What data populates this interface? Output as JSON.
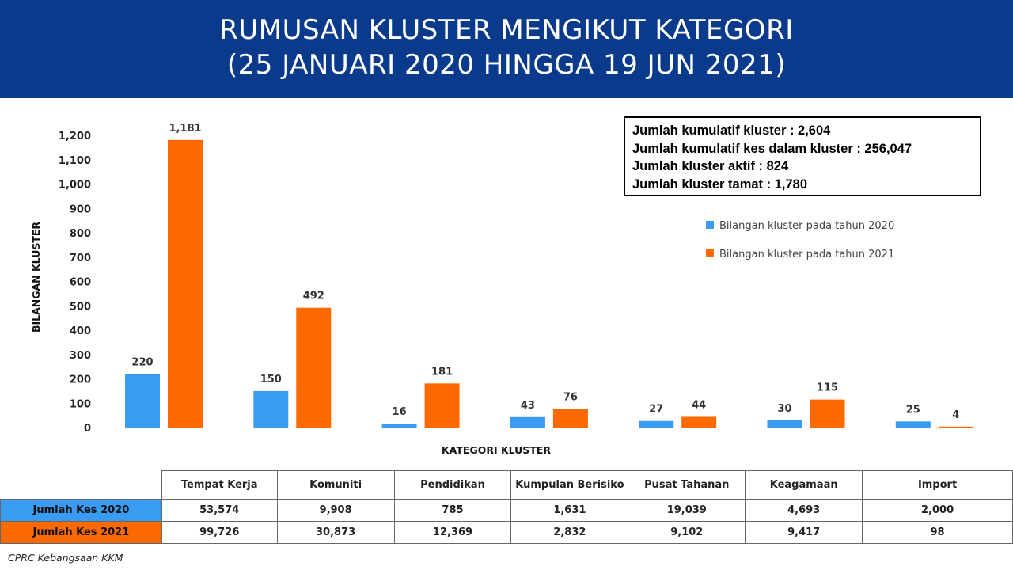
{
  "header": {
    "line1": "RUMUSAN KLUSTER MENGIKUT KATEGORI",
    "line2": "(25 JANUARI 2020 HINGGA 19 JUN 2021)"
  },
  "stats": [
    "Jumlah kumulatif kluster : 2,604",
    "Jumlah kumulatif kes dalam kluster : 256,047",
    "Jumlah kluster aktif : 824",
    "Jumlah kluster tamat : 1,780"
  ],
  "chart_data": {
    "type": "bar",
    "title": "",
    "xlabel": "KATEGORI KLUSTER",
    "ylabel": "BILANGAN KLUSTER",
    "ylim": [
      0,
      1200
    ],
    "yticks": [
      0,
      100,
      200,
      300,
      400,
      500,
      600,
      700,
      800,
      900,
      1000,
      1100,
      1200
    ],
    "ytick_labels": [
      "0",
      "100",
      "200",
      "300",
      "400",
      "500",
      "600",
      "700",
      "800",
      "900",
      "1,000",
      "1,100",
      "1,200"
    ],
    "categories": [
      "Tempat Kerja",
      "Komuniti",
      "Pendidikan",
      "Kumpulan Berisiko",
      "Pusat Tahanan",
      "Keagamaan",
      "Import"
    ],
    "legend_position": "right",
    "series": [
      {
        "name": "Bilangan kluster pada tahun 2020",
        "color": "#3a9bf2",
        "values": [
          220,
          150,
          16,
          43,
          27,
          30,
          25
        ],
        "labels": [
          "220",
          "150",
          "16",
          "43",
          "27",
          "30",
          "25"
        ]
      },
      {
        "name": "Bilangan kluster pada tahun 2021",
        "color": "#ff6a00",
        "values": [
          1181,
          492,
          181,
          76,
          44,
          115,
          4
        ],
        "labels": [
          "1,181",
          "492",
          "181",
          "76",
          "44",
          "115",
          "4"
        ]
      }
    ]
  },
  "table": {
    "headers": [
      "Tempat Kerja",
      "Komuniti",
      "Pendidikan",
      "Kumpulan Berisiko",
      "Pusat Tahanan",
      "Keagamaan",
      "Import"
    ],
    "rows": [
      {
        "label": "Jumlah Kes 2020",
        "values": [
          "53,574",
          "9,908",
          "785",
          "1,631",
          "19,039",
          "4,693",
          "2,000"
        ]
      },
      {
        "label": "Jumlah Kes 2021",
        "values": [
          "99,726",
          "30,873",
          "12,369",
          "2,832",
          "9,102",
          "9,417",
          "98"
        ]
      }
    ]
  },
  "footer": "CPRC Kebangsaan KKM"
}
